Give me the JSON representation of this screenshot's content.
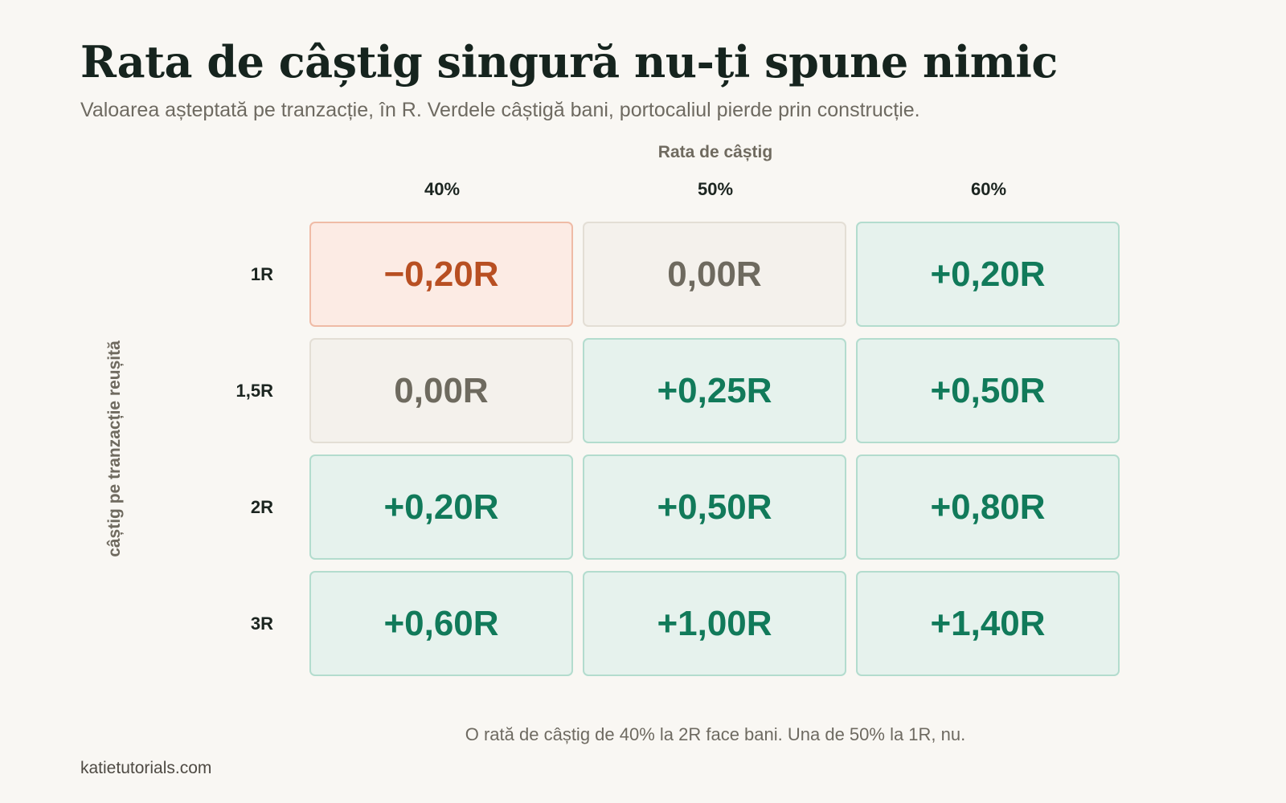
{
  "title": "Rata de câștig singură nu-ți spune nimic",
  "subtitle": "Valoarea așteptată pe tranzacție, în R. Verdele câștigă bani, portocaliul pierde prin construcție.",
  "takeaway": "O rată de câștig de 40% la 2R face bani. Una de 50% la 1R, nu.",
  "footer": "katietutorials.com",
  "colors": {
    "positive": "#117a5a",
    "positive_bg": "#e6f2ed",
    "neutral": "#6e6a5f",
    "neutral_bg": "#f4f1ec",
    "negative": "#b84f22",
    "negative_bg": "#fcebe4"
  },
  "chart_data": {
    "type": "heatmap",
    "title": "Rata de câștig singură nu-ți spune nimic",
    "xlabel": "Rata de câștig",
    "ylabel": "câștig pe tranzacție reușită",
    "x": [
      "40%",
      "50%",
      "60%"
    ],
    "y": [
      "1R",
      "1,5R",
      "2R",
      "3R"
    ],
    "values": [
      [
        -0.2,
        0.0,
        0.2
      ],
      [
        0.0,
        0.25,
        0.5
      ],
      [
        0.2,
        0.5,
        0.8
      ],
      [
        0.6,
        1.0,
        1.4
      ]
    ],
    "labels": [
      [
        "−0,20R",
        "0,00R",
        "+0,20R"
      ],
      [
        "0,00R",
        "+0,25R",
        "+0,50R"
      ],
      [
        "+0,20R",
        "+0,50R",
        "+0,80R"
      ],
      [
        "+0,60R",
        "+1,00R",
        "+1,40R"
      ]
    ]
  }
}
